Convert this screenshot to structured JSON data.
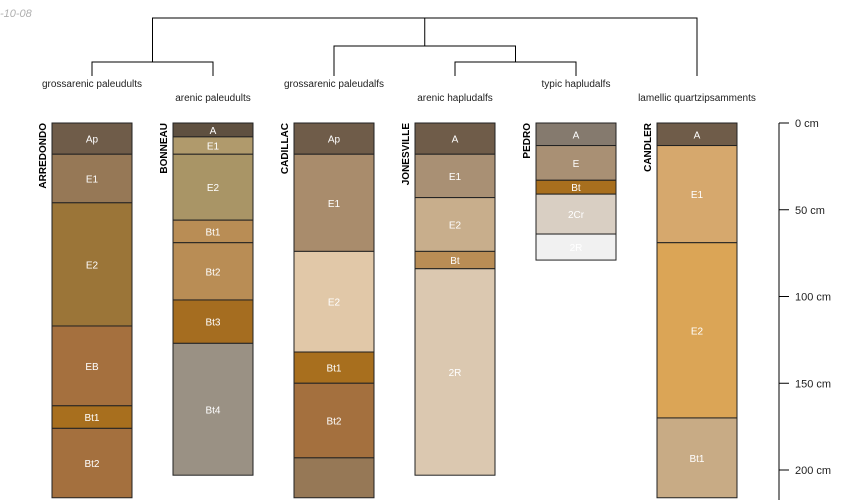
{
  "figure": {
    "date_label": "-10-08",
    "colors": {
      "line": "#000000",
      "text": "#222222",
      "horizon_border": "#222222"
    }
  },
  "chart_data": {
    "type": "soil-profile-sketch",
    "depth_unit": "cm",
    "depth_axis": {
      "ticks": [
        0,
        50,
        100,
        150,
        200
      ],
      "tick_labels": [
        "0 cm",
        "50 cm",
        "100 cm",
        "150 cm",
        "200 cm"
      ]
    },
    "dendrogram": {
      "root": {
        "children": [
          "g1",
          "g2",
          "candler"
        ]
      },
      "g1": {
        "children": [
          "arredondo",
          "bonneau"
        ]
      },
      "g2": {
        "children": [
          "cadillac",
          "g3"
        ]
      },
      "g3": {
        "children": [
          "jonesville",
          "pedro"
        ]
      }
    },
    "taxonomy_labels": [
      {
        "profile": "arredondo",
        "text": "grossarenic paleudults"
      },
      {
        "profile": "bonneau",
        "text": "arenic paleudults"
      },
      {
        "profile": "cadillac",
        "text": "grossarenic paleudalfs"
      },
      {
        "profile": "jonesville",
        "text": "arenic hapludalfs"
      },
      {
        "profile": "pedro",
        "text": "typic hapludalfs"
      },
      {
        "profile": "candler",
        "text": "lamellic quartzipsamments"
      }
    ],
    "profiles": [
      {
        "id": "arredondo",
        "name": "ARREDONDO",
        "horizons": [
          {
            "name": "Ap",
            "top": 0,
            "bottom": 18,
            "color": "#6f5c49"
          },
          {
            "name": "E1",
            "top": 18,
            "bottom": 46,
            "color": "#967856"
          },
          {
            "name": "E2",
            "top": 46,
            "bottom": 117,
            "color": "#9b7538"
          },
          {
            "name": "EB",
            "top": 117,
            "bottom": 163,
            "color": "#a5703e"
          },
          {
            "name": "Bt1",
            "top": 163,
            "bottom": 176,
            "color": "#a86f1e"
          },
          {
            "name": "Bt2",
            "top": 176,
            "bottom": 216,
            "color": "#a4703e"
          }
        ]
      },
      {
        "id": "bonneau",
        "name": "BONNEAU",
        "horizons": [
          {
            "name": "A",
            "top": 0,
            "bottom": 8,
            "color": "#5f5040"
          },
          {
            "name": "E1",
            "top": 8,
            "bottom": 18,
            "color": "#b09a6c"
          },
          {
            "name": "E2",
            "top": 18,
            "bottom": 56,
            "color": "#a99566"
          },
          {
            "name": "Bt1",
            "top": 56,
            "bottom": 69,
            "color": "#b98d55"
          },
          {
            "name": "Bt2",
            "top": 69,
            "bottom": 102,
            "color": "#b98d55"
          },
          {
            "name": "Bt3",
            "top": 102,
            "bottom": 127,
            "color": "#a56d20"
          },
          {
            "name": "Bt4",
            "top": 127,
            "bottom": 203,
            "color": "#9a9184"
          }
        ]
      },
      {
        "id": "cadillac",
        "name": "CADILLAC",
        "horizons": [
          {
            "name": "Ap",
            "top": 0,
            "bottom": 18,
            "color": "#6f5c49"
          },
          {
            "name": "E1",
            "top": 18,
            "bottom": 74,
            "color": "#a98c6c"
          },
          {
            "name": "E2",
            "top": 74,
            "bottom": 132,
            "color": "#e1c8a8"
          },
          {
            "name": "Bt1",
            "top": 132,
            "bottom": 150,
            "color": "#a86f1e"
          },
          {
            "name": "Bt2",
            "top": 150,
            "bottom": 193,
            "color": "#a4703e"
          },
          {
            "name": "",
            "top": 193,
            "bottom": 216,
            "color": "#967856"
          }
        ]
      },
      {
        "id": "jonesville",
        "name": "JONESVILLE",
        "horizons": [
          {
            "name": "A",
            "top": 0,
            "bottom": 18,
            "color": "#6f5c49"
          },
          {
            "name": "E1",
            "top": 18,
            "bottom": 43,
            "color": "#a99074"
          },
          {
            "name": "E2",
            "top": 43,
            "bottom": 74,
            "color": "#c8ae8c"
          },
          {
            "name": "Bt",
            "top": 74,
            "bottom": 84,
            "color": "#b98d55"
          },
          {
            "name": "2R",
            "top": 84,
            "bottom": 203,
            "color": "#dbc8b0"
          }
        ]
      },
      {
        "id": "pedro",
        "name": "PEDRO",
        "horizons": [
          {
            "name": "A",
            "top": 0,
            "bottom": 13,
            "color": "#857a6e"
          },
          {
            "name": "E",
            "top": 13,
            "bottom": 33,
            "color": "#a99074"
          },
          {
            "name": "Bt",
            "top": 33,
            "bottom": 41,
            "color": "#a86f1e"
          },
          {
            "name": "2Cr",
            "top": 41,
            "bottom": 64,
            "color": "#d9cfc3"
          },
          {
            "name": "2R",
            "top": 64,
            "bottom": 79,
            "color": "#f1f1f1"
          }
        ]
      },
      {
        "id": "candler",
        "name": "CANDLER",
        "horizons": [
          {
            "name": "A",
            "top": 0,
            "bottom": 13,
            "color": "#6f5c49"
          },
          {
            "name": "E1",
            "top": 13,
            "bottom": 69,
            "color": "#d6a86d"
          },
          {
            "name": "E2",
            "top": 69,
            "bottom": 170,
            "color": "#dba556"
          },
          {
            "name": "Bt1",
            "top": 170,
            "bottom": 216,
            "color": "#c8ab85"
          }
        ]
      }
    ]
  }
}
